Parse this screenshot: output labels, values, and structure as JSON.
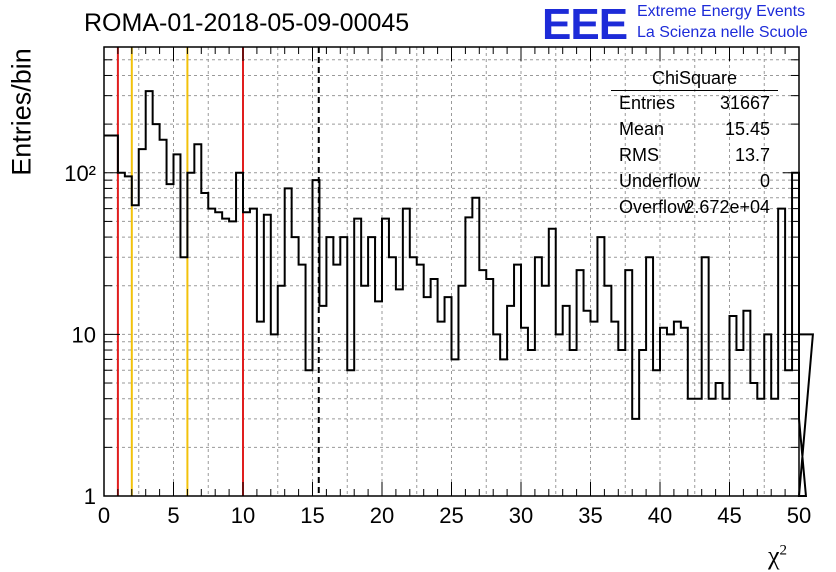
{
  "header": {
    "title": "ROMA-01-2018-05-09-00045",
    "logo_text": "EEE",
    "logo_line1": "Extreme Energy Events",
    "logo_line2": "La Scienza nelle Scuole"
  },
  "stats_box": {
    "title": "ChiSquare",
    "rows": [
      {
        "key": "Entries",
        "value": "31667"
      },
      {
        "key": "Mean",
        "value": "15.45"
      },
      {
        "key": "RMS",
        "value": "13.7"
      },
      {
        "key": "Underflow",
        "value": "0"
      },
      {
        "key": "Overflow",
        "value": "2.672e+04"
      }
    ]
  },
  "chart_data": {
    "type": "histogram",
    "title": "ROMA-01-2018-05-09-00045",
    "xlabel": "χ²",
    "ylabel": "Entries/bin",
    "xlim": [
      0,
      50
    ],
    "ylim": [
      1,
      600
    ],
    "yscale": "log",
    "bin_width": 0.5,
    "grid": true,
    "x_ticks": [
      "0",
      "5",
      "10",
      "15",
      "20",
      "25",
      "30",
      "35",
      "40",
      "45",
      "50"
    ],
    "y_ticks": [
      {
        "value": 1,
        "label": "1"
      },
      {
        "value": 10,
        "label": "10"
      },
      {
        "value": 100,
        "label": "10²"
      }
    ],
    "values": [
      170,
      170,
      100,
      95,
      63,
      140,
      320,
      200,
      160,
      85,
      130,
      30,
      100,
      150,
      75,
      60,
      57,
      52,
      50,
      100,
      57,
      60,
      12,
      55,
      10,
      20,
      80,
      40,
      27,
      6,
      90,
      15,
      40,
      27,
      40,
      6,
      52,
      20,
      40,
      16,
      52,
      30,
      19,
      60,
      30,
      27,
      17,
      22,
      12,
      17,
      7,
      20,
      53,
      70,
      25,
      22,
      10,
      7,
      15,
      27,
      11,
      8,
      30,
      20,
      45,
      10,
      15,
      8,
      25,
      14,
      12,
      40,
      20,
      12,
      8,
      25,
      3,
      8,
      30,
      6,
      11,
      10,
      12,
      11,
      4,
      4,
      30,
      4,
      5,
      4,
      13,
      8,
      14,
      5,
      4,
      10,
      4,
      60,
      6,
      100,
      3,
      1,
      10
    ],
    "vertical_lines": [
      {
        "x": 1,
        "color": "#e01e1e",
        "style": "solid"
      },
      {
        "x": 2,
        "color": "#f2c20a",
        "style": "solid"
      },
      {
        "x": 6,
        "color": "#f2c20a",
        "style": "solid"
      },
      {
        "x": 10,
        "color": "#e01e1e",
        "style": "solid"
      },
      {
        "x": 15.45,
        "color": "#000000",
        "style": "dashed"
      }
    ],
    "line_color": "#000000",
    "grid_color": "#9a9a9a"
  }
}
